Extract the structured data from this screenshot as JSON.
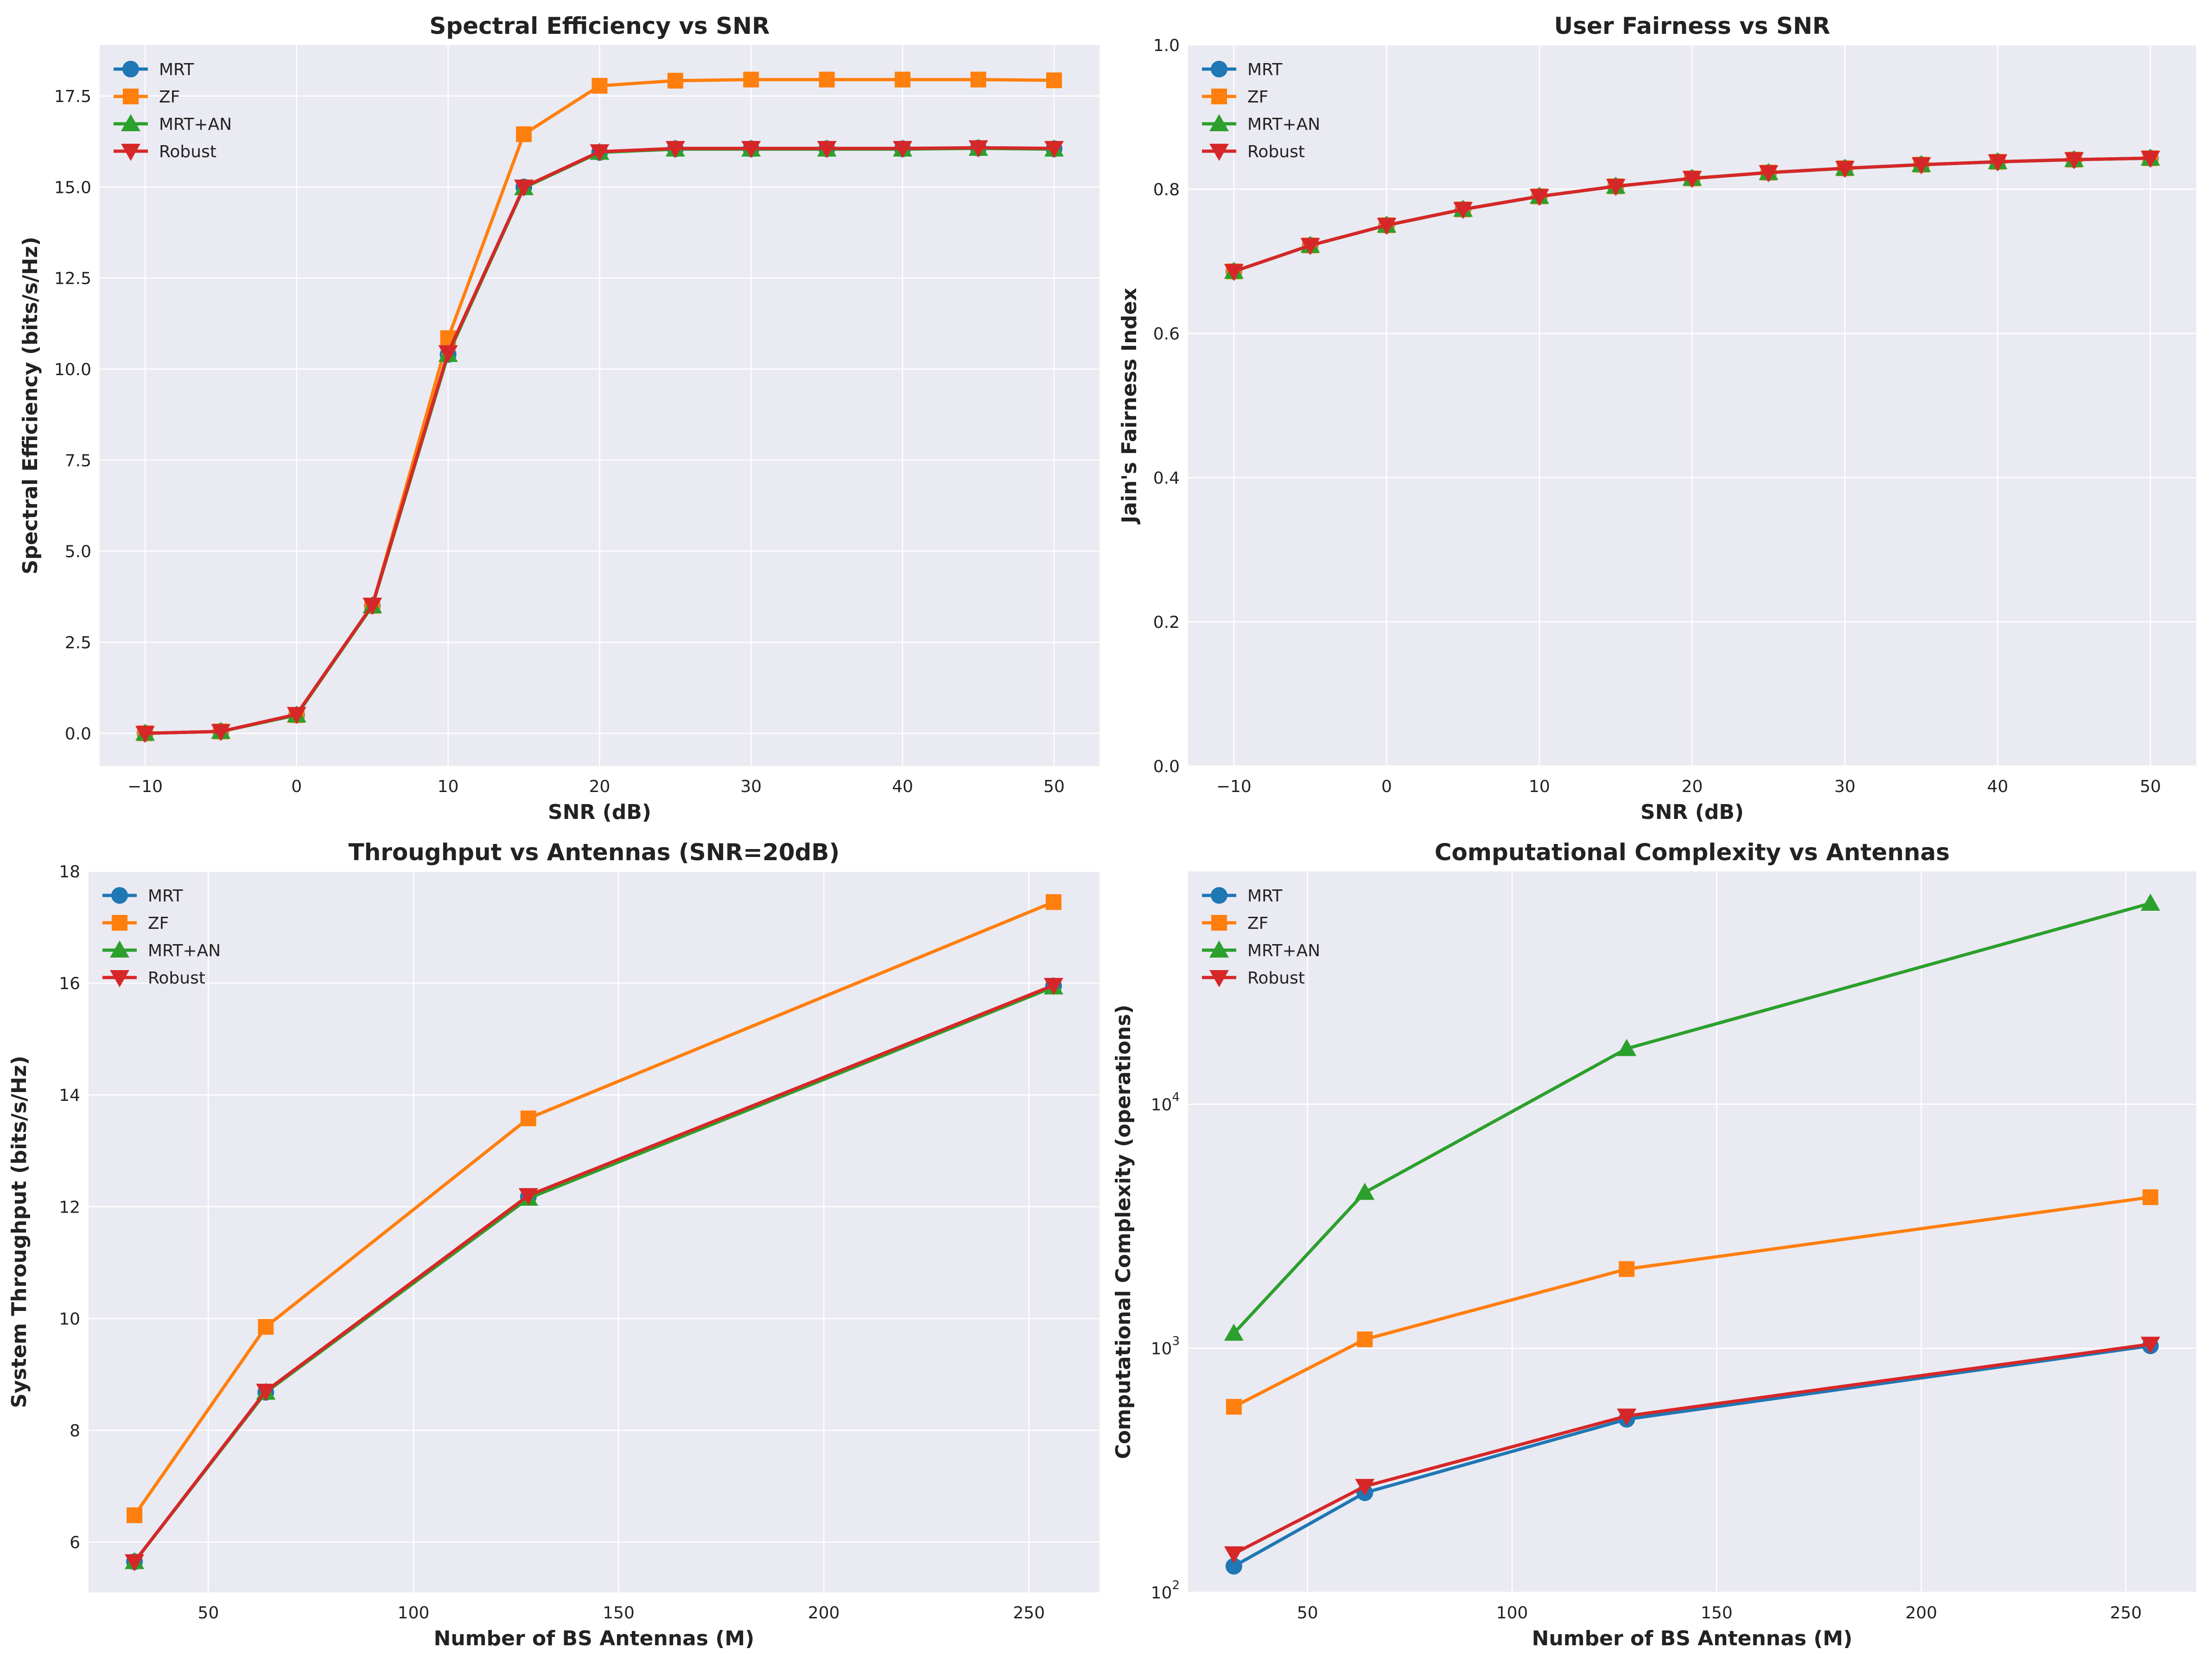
{
  "colors": {
    "MRT": "#1f77b4",
    "ZF": "#ff7f0e",
    "MRT+AN": "#2ca02c",
    "Robust": "#d62728"
  },
  "chart_data": [
    {
      "type": "line",
      "title": "Spectral Efficiency vs SNR",
      "xlabel": "SNR (dB)",
      "ylabel": "Spectral Efficiency (bits/s/Hz)",
      "xlim": [
        -13,
        53
      ],
      "ylim": [
        -0.9,
        18.9
      ],
      "xticks": [
        -10,
        0,
        10,
        20,
        30,
        40,
        50
      ],
      "xtick_labels": [
        "−10",
        "0",
        "10",
        "20",
        "30",
        "40",
        "50"
      ],
      "yticks": [
        0,
        2.5,
        5,
        7.5,
        10,
        12.5,
        15,
        17.5
      ],
      "ytick_labels": [
        "0.0",
        "2.5",
        "5.0",
        "7.5",
        "10.0",
        "12.5",
        "15.0",
        "17.5"
      ],
      "yscale": "linear",
      "legend": "upper-left",
      "grid": true,
      "x": [
        -10,
        -5,
        0,
        5,
        10,
        15,
        20,
        25,
        30,
        35,
        40,
        45,
        50
      ],
      "series": [
        {
          "name": "MRT",
          "marker": "circle",
          "values": [
            0.0,
            0.05,
            0.5,
            3.5,
            10.4,
            15.0,
            15.95,
            16.05,
            16.05,
            16.05,
            16.05,
            16.07,
            16.05
          ]
        },
        {
          "name": "ZF",
          "marker": "square",
          "values": [
            0.0,
            0.05,
            0.5,
            3.5,
            10.85,
            16.45,
            17.78,
            17.92,
            17.95,
            17.95,
            17.95,
            17.95,
            17.93
          ]
        },
        {
          "name": "MRT+AN",
          "marker": "triangle-up",
          "values": [
            0.0,
            0.05,
            0.5,
            3.5,
            10.4,
            14.98,
            15.95,
            16.04,
            16.04,
            16.04,
            16.04,
            16.06,
            16.04
          ]
        },
        {
          "name": "Robust",
          "marker": "triangle-down",
          "values": [
            0.0,
            0.05,
            0.52,
            3.52,
            10.45,
            15.0,
            15.97,
            16.06,
            16.06,
            16.06,
            16.06,
            16.08,
            16.06
          ]
        }
      ]
    },
    {
      "type": "line",
      "title": "User Fairness vs SNR",
      "xlabel": "SNR (dB)",
      "ylabel": "Jain's Fairness Index",
      "xlim": [
        -13,
        53
      ],
      "ylim": [
        0,
        1.0
      ],
      "xticks": [
        -10,
        0,
        10,
        20,
        30,
        40,
        50
      ],
      "xtick_labels": [
        "−10",
        "0",
        "10",
        "20",
        "30",
        "40",
        "50"
      ],
      "yticks": [
        0,
        0.2,
        0.4,
        0.6,
        0.8,
        1.0
      ],
      "ytick_labels": [
        "0.0",
        "0.2",
        "0.4",
        "0.6",
        "0.8",
        "1.0"
      ],
      "yscale": "linear",
      "legend": "upper-left",
      "grid": true,
      "x": [
        -10,
        -5,
        0,
        5,
        10,
        15,
        20,
        25,
        30,
        35,
        40,
        45,
        50
      ],
      "series": [
        {
          "name": "MRT",
          "marker": "circle",
          "values": [
            0.686,
            0.722,
            0.75,
            0.772,
            0.79,
            0.804,
            0.815,
            0.823,
            0.829,
            0.834,
            0.838,
            0.841,
            0.843
          ]
        },
        {
          "name": "ZF",
          "marker": "square",
          "values": [
            0.686,
            0.722,
            0.75,
            0.772,
            0.79,
            0.804,
            0.815,
            0.823,
            0.829,
            0.834,
            0.838,
            0.841,
            0.843
          ]
        },
        {
          "name": "MRT+AN",
          "marker": "triangle-up",
          "values": [
            0.686,
            0.722,
            0.75,
            0.772,
            0.79,
            0.804,
            0.815,
            0.823,
            0.829,
            0.834,
            0.838,
            0.841,
            0.843
          ]
        },
        {
          "name": "Robust",
          "marker": "triangle-down",
          "values": [
            0.686,
            0.722,
            0.75,
            0.772,
            0.79,
            0.804,
            0.815,
            0.823,
            0.829,
            0.834,
            0.838,
            0.841,
            0.843
          ]
        }
      ]
    },
    {
      "type": "line",
      "title": "Throughput vs Antennas (SNR=20dB)",
      "xlabel": "Number of BS Antennas (M)",
      "ylabel": "System Throughput (bits/s/Hz)",
      "xlim": [
        20.8,
        267.2
      ],
      "ylim": [
        5.1,
        18.0
      ],
      "xticks": [
        50,
        100,
        150,
        200,
        250
      ],
      "xtick_labels": [
        "50",
        "100",
        "150",
        "200",
        "250"
      ],
      "yticks": [
        6,
        8,
        10,
        12,
        14,
        16,
        18
      ],
      "ytick_labels": [
        "6",
        "8",
        "10",
        "12",
        "14",
        "16",
        "18"
      ],
      "yscale": "linear",
      "legend": "upper-left",
      "grid": true,
      "x": [
        32,
        64,
        128,
        256
      ],
      "series": [
        {
          "name": "MRT",
          "marker": "circle",
          "values": [
            5.65,
            8.68,
            12.18,
            15.95
          ]
        },
        {
          "name": "ZF",
          "marker": "square",
          "values": [
            6.48,
            9.85,
            13.58,
            17.45
          ]
        },
        {
          "name": "MRT+AN",
          "marker": "triangle-up",
          "values": [
            5.65,
            8.68,
            12.15,
            15.93
          ]
        },
        {
          "name": "Robust",
          "marker": "triangle-down",
          "values": [
            5.65,
            8.7,
            12.2,
            15.96
          ]
        }
      ]
    },
    {
      "type": "line",
      "title": "Computational Complexity vs Antennas",
      "xlabel": "Number of BS Antennas (M)",
      "ylabel": "Computational Complexity (operations)",
      "xlim": [
        20.8,
        267.2
      ],
      "ylim": [
        100,
        90000
      ],
      "xticks": [
        50,
        100,
        150,
        200,
        250
      ],
      "xtick_labels": [
        "50",
        "100",
        "150",
        "200",
        "250"
      ],
      "yticks": [
        100,
        1000,
        10000
      ],
      "ytick_labels": [
        "10",
        "10",
        "10"
      ],
      "ytick_exponents": [
        "2",
        "3",
        "4"
      ],
      "yscale": "log",
      "legend": "upper-left",
      "grid": true,
      "x": [
        32,
        64,
        128,
        256
      ],
      "series": [
        {
          "name": "MRT",
          "marker": "circle",
          "values": [
            128,
            256,
            512,
            1024
          ]
        },
        {
          "name": "ZF",
          "marker": "square",
          "values": [
            576,
            1088,
            2112,
            4160
          ]
        },
        {
          "name": "MRT+AN",
          "marker": "triangle-up",
          "values": [
            1152,
            4352,
            16896,
            66560
          ]
        },
        {
          "name": "Robust",
          "marker": "triangle-down",
          "values": [
            144,
            272,
            528,
            1040
          ]
        }
      ]
    }
  ]
}
